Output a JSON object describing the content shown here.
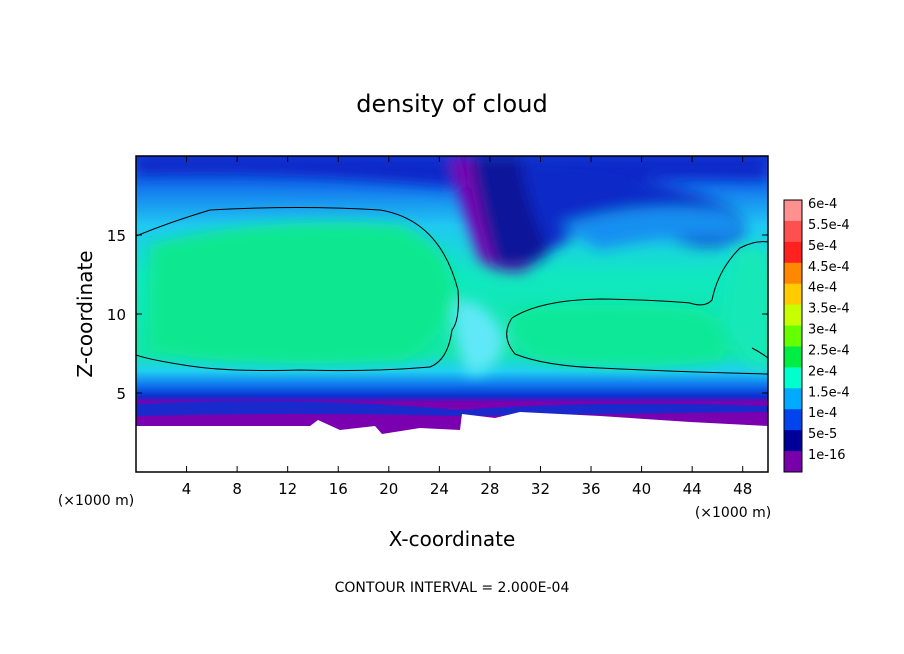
{
  "chart_data": {
    "type": "heatmap",
    "title": "density of cloud",
    "xlabel": "X-coordinate",
    "ylabel": "Z-coordinate",
    "x_unit_label_left": "(×1000 m)",
    "x_unit_label_right": "(×1000 m)",
    "xlim": [
      0,
      50
    ],
    "ylim": [
      0,
      20
    ],
    "x_ticks": [
      4,
      8,
      12,
      16,
      20,
      24,
      28,
      32,
      36,
      40,
      44,
      48
    ],
    "y_ticks": [
      5,
      10,
      15
    ],
    "contour_interval_label": "CONTOUR INTERVAL = 2.000E-04",
    "colorbar": {
      "labels": [
        "6e-4",
        "5.5e-4",
        "5e-4",
        "4.5e-4",
        "4e-4",
        "3.5e-4",
        "3e-4",
        "2.5e-4",
        "2e-4",
        "1.5e-4",
        "1e-4",
        "5e-5",
        "1e-16"
      ],
      "colors": [
        "#ff9090",
        "#ff5050",
        "#ff2020",
        "#ff8800",
        "#ffcc00",
        "#c8ff00",
        "#66ff00",
        "#00ee44",
        "#00ffcc",
        "#00aaff",
        "#0044ee",
        "#000099",
        "#7700aa"
      ]
    },
    "regions": [
      {
        "name": "upper-dry-band",
        "level": "5e-5 to 1e-4"
      },
      {
        "name": "left-cloud-core",
        "level": "2e-4 to 2.5e-4"
      },
      {
        "name": "right-cloud-core",
        "level": "2e-4 to 2.5e-4"
      },
      {
        "name": "central-dry-tongue",
        "level": "1e-16 to 5e-5"
      },
      {
        "name": "cloud-base-layer",
        "level": "1e-16"
      }
    ]
  }
}
